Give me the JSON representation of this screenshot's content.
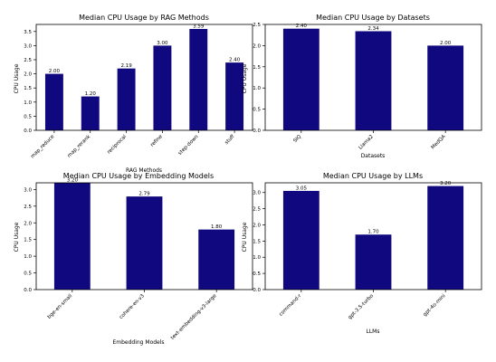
{
  "colors": {
    "bar": "#10087e",
    "axis": "#000000",
    "background": "#ffffff"
  },
  "chart_data": [
    {
      "type": "bar",
      "title": "Median CPU Usage by RAG Methods",
      "xlabel": "RAG Methods",
      "ylabel": "CPU Usage",
      "categories": [
        "map_reduce",
        "map_rerank",
        "reciprocal",
        "refine",
        "step-down",
        "stuff"
      ],
      "values": [
        2.0,
        1.2,
        2.19,
        3.0,
        3.59,
        2.4
      ],
      "value_labels": [
        "2.00",
        "1.20",
        "2.19",
        "3.00",
        "3.59",
        "2.40"
      ],
      "ylim": [
        0,
        3.75
      ],
      "yticks": [
        0.0,
        0.5,
        1.0,
        1.5,
        2.0,
        2.5,
        3.0,
        3.5
      ],
      "ytick_labels": [
        "0.0",
        "0.5",
        "1.0",
        "1.5",
        "2.0",
        "2.5",
        "3.0",
        "3.5"
      ],
      "grid": false
    },
    {
      "type": "bar",
      "title": "Median CPU Usage by Datasets",
      "xlabel": "Datasets",
      "ylabel": "CPU Usage",
      "categories": [
        "SIQ",
        "Llama2",
        "MedQA"
      ],
      "values": [
        2.4,
        2.34,
        2.0
      ],
      "value_labels": [
        "2.40",
        "2.34",
        "2.00"
      ],
      "ylim": [
        0,
        2.5
      ],
      "yticks": [
        0.0,
        0.5,
        1.0,
        1.5,
        2.0,
        2.5
      ],
      "ytick_labels": [
        "0.0",
        "0.5",
        "1.0",
        "1.5",
        "2.0",
        "2.5"
      ],
      "grid": false
    },
    {
      "type": "bar",
      "title": "Median CPU Usage by Embedding Models",
      "xlabel": "Embedding Models",
      "ylabel": "CPU Usage",
      "categories": [
        "bge-en-small",
        "cohere-en-v3",
        "text-embedding-v3-large"
      ],
      "values": [
        3.2,
        2.79,
        1.8
      ],
      "value_labels": [
        "3.20",
        "2.79",
        "1.80"
      ],
      "ylim": [
        0,
        3.2
      ],
      "yticks": [
        0.0,
        0.5,
        1.0,
        1.5,
        2.0,
        2.5,
        3.0
      ],
      "ytick_labels": [
        "0.0",
        "0.5",
        "1.0",
        "1.5",
        "2.0",
        "2.5",
        "3.0"
      ],
      "grid": false
    },
    {
      "type": "bar",
      "title": "Median CPU Usage by LLMs",
      "xlabel": "LLMs",
      "ylabel": "CPU Usage",
      "categories": [
        "command-r",
        "gpt-3.5-turbo",
        "gpt-4o-mini"
      ],
      "values": [
        3.05,
        1.7,
        3.2
      ],
      "value_labels": [
        "3.05",
        "1.70",
        "3.20"
      ],
      "ylim": [
        0,
        3.3
      ],
      "yticks": [
        0.0,
        0.5,
        1.0,
        1.5,
        2.0,
        2.5,
        3.0
      ],
      "ytick_labels": [
        "0.0",
        "0.5",
        "1.0",
        "1.5",
        "2.0",
        "2.5",
        "3.0"
      ],
      "grid": false
    }
  ]
}
